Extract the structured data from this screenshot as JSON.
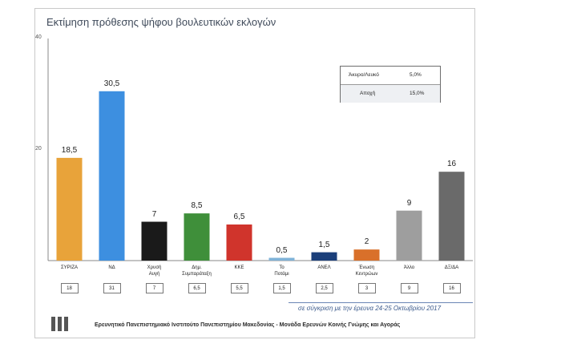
{
  "header": {
    "title": "Εκτίμηση πρόθεσης ψήφου βουλευτικών εκλογών"
  },
  "colors": {
    "syriza": "#e8a33a",
    "nd": "#3d8fe0",
    "xa": "#1a1a1a",
    "dimar": "#3f8f3a",
    "kke": "#d0342c",
    "potami": "#7fb3d8",
    "anel": "#1b3f7a",
    "enosi": "#d9702a",
    "allo": "#9e9e9e",
    "dxda": "#6a6a6a"
  },
  "legend": {
    "rows": [
      {
        "label": "Άκυρο/Λευκό",
        "value": "5,0%"
      },
      {
        "label": "Αποχή",
        "value": "15,0%"
      }
    ]
  },
  "chart_data": {
    "type": "bar",
    "title": "Εκτίμηση πρόθεσης ψήφου βουλευτικών εκλογών",
    "categories": [
      "ΣΥΡΙΖΑ",
      "ΝΔ",
      "Χρυσή Αυγή",
      "Δημ. Συμπαράταξη",
      "ΚΚΕ",
      "Το Ποτάμι",
      "ΑΝΕΛ",
      "Ένωση Κεντρώων",
      "Άλλο",
      "ΔΞ/ΔΑ"
    ],
    "values": [
      18.5,
      30.5,
      7,
      8.5,
      6.5,
      0.5,
      1.5,
      2,
      9,
      16
    ],
    "value_labels": [
      "18,5",
      "30,5",
      "7",
      "8,5",
      "6,5",
      "0,5",
      "1,5",
      "2",
      "9",
      "16"
    ],
    "category_lines": [
      [
        "ΣΥΡΙΖΑ"
      ],
      [
        "ΝΔ"
      ],
      [
        "Χρυσή",
        "Αυγή"
      ],
      [
        "Δημ.",
        "Συμπαράταξη"
      ],
      [
        "ΚΚΕ"
      ],
      [
        "Το",
        "Ποτάμι"
      ],
      [
        "ΑΝΕΛ"
      ],
      [
        "Ένωση",
        "Κεντρώων"
      ],
      [
        "Άλλο"
      ],
      [
        "ΔΞ/ΔΑ"
      ]
    ],
    "comparison_values": [
      "18",
      "31",
      "7",
      "6,5",
      "5,5",
      "1,5",
      "2,5",
      "3",
      "9",
      "16"
    ],
    "ylim": [
      0,
      40
    ],
    "yticks": [
      "40",
      "20"
    ],
    "grid": false
  },
  "notes": {
    "comparison": "σε σύγκριση με την έρευνα 24-25 Οκτωβρίου 2017",
    "footer": "Ερευνητικό Πανεπιστημιακό Ινστιτούτο Πανεπιστημίου Μακεδονίας - Μονάδα Ερευνών Κοινής Γνώμης και Αγοράς"
  }
}
